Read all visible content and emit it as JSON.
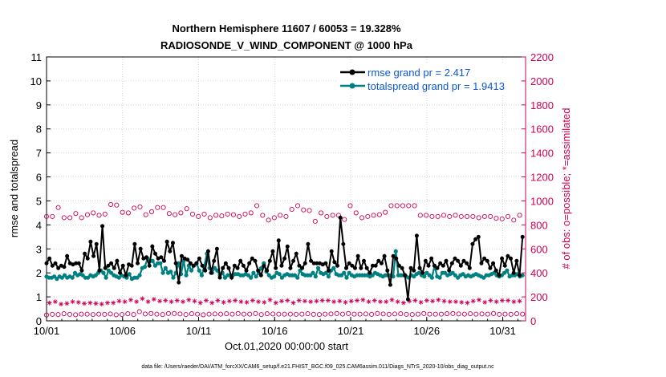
{
  "chart_data": {
    "type": "line",
    "title": "Northern Hemisphere 11607 / 60053 = 19.328%",
    "subtitle": "RADIOSONDE_V_WIND_COMPONENT @ 1000 hPa",
    "xlabel": "Oct.01,2020 00:00:00 start",
    "ylabel": "rmse and totalspread",
    "y2label": "# of obs: o=possible; *=assimilated",
    "footnote": "data file: /Users/raeder/DAI/ATM_forcXX/CAM6_setup/f.e21.FHIST_BGC.f09_025.CAM6assim.011/Diags_NTrS_2020-10/obs_diag_output.nc",
    "xlim": [
      1,
      32.5
    ],
    "ylim": [
      0,
      11
    ],
    "y2lim": [
      0,
      2200
    ],
    "xticks": [
      1,
      6,
      11,
      16,
      21,
      26,
      31
    ],
    "xtick_labels": [
      "10/01",
      "10/06",
      "10/11",
      "10/16",
      "10/21",
      "10/26",
      "10/31"
    ],
    "yticks": [
      0,
      1,
      2,
      3,
      4,
      5,
      6,
      7,
      8,
      9,
      10,
      11
    ],
    "y2ticks": [
      0,
      200,
      400,
      600,
      800,
      1000,
      1200,
      1400,
      1600,
      1800,
      2000,
      2200
    ],
    "grid": true,
    "legend": {
      "position": "top-right",
      "entries": [
        "rmse grand pr = 2.417",
        "totalspread grand pr = 1.9413"
      ]
    },
    "colors": {
      "rmse": "#000000",
      "totalspread": "#008080",
      "obs": "#cc0055",
      "grid": "#cccccc",
      "legend_text": "#0b57d0"
    },
    "series": [
      {
        "name": "rmse",
        "axis": "left",
        "values": [
          2.4,
          2.6,
          2.3,
          2.4,
          2.2,
          2.3,
          2.25,
          2.7,
          2.4,
          2.35,
          2.4,
          2.4,
          2.1,
          2.8,
          2.6,
          3.3,
          2.7,
          3.2,
          2.1,
          3.95,
          2.2,
          2.3,
          2.4,
          2.2,
          2.5,
          2.0,
          2.3,
          1.9,
          2.35,
          2.3,
          3.2,
          2.4,
          3.0,
          2.6,
          2.65,
          2.3,
          3.1,
          2.8,
          2.6,
          2.65,
          2.5,
          3.3,
          2.9,
          3.25,
          2.4,
          1.6,
          2.7,
          2.6,
          2.55,
          2.4,
          2.3,
          2.4,
          2.6,
          2.3,
          2.1,
          2.9,
          2.0,
          2.5,
          3.0,
          1.8,
          2.2,
          2.4,
          2.2,
          1.8,
          2.3,
          2.2,
          2.5,
          2.3,
          2.1,
          2.4,
          2.6,
          2.5,
          2.1,
          1.9,
          2.3,
          2.1,
          2.5,
          2.9,
          2.2,
          3.35,
          2.3,
          2.6,
          3.1,
          2.2,
          2.5,
          2.8,
          2.3,
          2.2,
          2.4,
          3.2,
          2.5,
          2.4,
          2.4,
          2.4,
          2.35,
          2.4,
          2.1,
          2.9,
          2.45,
          2.3,
          4.3,
          3.2,
          2.2,
          2.4,
          2.3,
          2.2,
          2.7,
          2.2,
          2.5,
          2.2,
          2.0,
          2.3,
          2.3,
          2.5,
          2.4,
          2.7,
          2.1,
          1.5,
          2.7,
          2.6,
          2.3,
          2.2,
          1.9,
          0.9,
          2.2,
          2.1,
          3.55,
          2.2,
          2.0,
          2.5,
          2.3,
          2.6,
          2.3,
          2.2,
          2.4,
          2.3,
          2.5,
          2.1,
          2.4,
          2.6,
          2.5,
          2.3,
          2.5,
          2.4,
          2.2,
          3.2,
          3.4,
          3.5,
          2.4,
          2.6,
          2.5,
          2.2,
          2.4,
          2.1,
          1.9,
          2.6,
          2.3,
          2.7,
          2.6,
          2.0,
          2.5,
          1.9,
          3.5
        ],
        "obs_possible": [
          870,
          840,
          870,
          845,
          945,
          850,
          860,
          850,
          860,
          850,
          895,
          855,
          860,
          895,
          885,
          950,
          900,
          890,
          880,
          905,
          890,
          810,
          970,
          925,
          965,
          925,
          905,
          960,
          900,
          995,
          940,
          905,
          950,
          890,
          885,
          870,
          910,
          945,
          945,
          870,
          945,
          830,
          895,
          890,
          885,
          890,
          900,
          890,
          935,
          880,
          890,
          865,
          870,
          875,
          890,
          870,
          860,
          895,
          880,
          920,
          875,
          860,
          890,
          870,
          885,
          880,
          870,
          835,
          890,
          860,
          900,
          855,
          960,
          870,
          880,
          875,
          840,
          865,
          860,
          945,
          880,
          860,
          870,
          960,
          930,
          905,
          960,
          850,
          925,
          880,
          920,
          880,
          830,
          935,
          900,
          810,
          870,
          870,
          880,
          880,
          880,
          870,
          845,
          910,
          960,
          900,
          900,
          875,
          860,
          900,
          870,
          890,
          880,
          900,
          885,
          880,
          905,
          890,
          960,
          965,
          960,
          960,
          960,
          950,
          960,
          960,
          960,
          925,
          880,
          870,
          880,
          840,
          870,
          880,
          870,
          880,
          880,
          850,
          870,
          880,
          880,
          840,
          870,
          870,
          870,
          860,
          870,
          870,
          860,
          890,
          870,
          860,
          870,
          880,
          855,
          880,
          850,
          890,
          870,
          890,
          840,
          870,
          880,
          860
        ],
        "obs_assimilated": [
          140,
          150,
          155,
          160,
          150,
          140,
          170,
          145,
          155,
          160,
          145,
          155,
          160,
          145,
          160,
          150,
          150,
          145,
          160,
          140,
          155,
          150,
          165,
          150,
          145,
          165,
          150,
          160,
          170,
          175,
          150,
          160,
          220,
          185,
          165,
          160,
          175,
          180,
          160,
          165,
          150,
          170,
          175,
          160,
          175,
          170,
          165,
          160,
          150,
          175,
          170,
          165,
          160,
          150,
          145,
          170,
          160,
          150,
          165,
          170,
          160,
          155,
          170,
          165,
          160,
          170,
          175,
          160,
          160,
          155,
          160,
          170,
          175,
          160,
          150,
          155,
          170,
          175,
          165,
          150,
          160,
          165,
          160,
          170,
          160,
          150,
          155,
          170,
          160,
          165,
          170,
          160,
          155,
          165,
          150,
          170,
          160,
          170,
          165,
          160,
          175,
          165,
          160,
          155,
          175,
          165,
          160,
          170,
          160,
          175,
          165,
          160,
          155,
          170,
          175,
          160,
          165,
          160,
          155,
          175,
          165,
          160,
          170,
          150,
          155,
          165,
          150,
          170,
          160,
          155,
          175,
          170,
          160,
          165,
          160,
          175,
          160,
          165,
          170,
          160,
          175,
          160,
          165,
          155,
          160,
          150,
          170,
          165,
          160,
          175,
          165,
          155,
          160,
          170,
          175,
          160,
          155,
          170,
          160,
          170,
          155,
          160,
          170,
          165,
          160
        ]
      },
      {
        "name": "totalspread",
        "axis": "left",
        "values": [
          1.85,
          1.8,
          1.8,
          1.85,
          1.75,
          1.85,
          1.8,
          1.9,
          1.8,
          1.85,
          1.8,
          2.0,
          1.9,
          1.95,
          1.9,
          1.8,
          1.8,
          1.9,
          1.85,
          1.9,
          2.0,
          2.1,
          2.0,
          1.8,
          2.1,
          2.0,
          1.9,
          1.85,
          1.8,
          1.9,
          1.85,
          1.8,
          1.95,
          1.75,
          1.8,
          1.8,
          1.9,
          2.2,
          2.25,
          2.6,
          2.5,
          2.5,
          2.3,
          2.4,
          2.4,
          2.0,
          2.2,
          2.0,
          2.05,
          1.8,
          2.0,
          2.4,
          1.95,
          2.5,
          1.9,
          2.3,
          2.1,
          2.3,
          2.4,
          2.1,
          1.9,
          2.3,
          2.8,
          2.2,
          2.0,
          2.2,
          2.1,
          1.9,
          2.0,
          1.8,
          1.9,
          1.9,
          1.9,
          1.95,
          1.95,
          1.9,
          1.9,
          1.95,
          1.9,
          1.8,
          2.0,
          1.85,
          2.0,
          2.2,
          2.4,
          2.05,
          1.9,
          1.8,
          1.85,
          2.0,
          1.95,
          1.8,
          1.9,
          1.95,
          1.9,
          1.9,
          1.9,
          1.8,
          2.1,
          1.95,
          1.9,
          1.9,
          1.9,
          2.0,
          1.85,
          2.2,
          2.0,
          1.95,
          2.0,
          1.85,
          2.1,
          2.2,
          1.95,
          1.9,
          1.9,
          2.0,
          1.8,
          2.0,
          1.9,
          1.85,
          1.9,
          1.9,
          1.9,
          1.9,
          1.9,
          1.85,
          1.9,
          2.0,
          1.95,
          1.9,
          1.85,
          1.9,
          1.9,
          1.9,
          1.85,
          2.9,
          1.9,
          1.9,
          1.9,
          1.85,
          1.8,
          1.9,
          1.85,
          1.95,
          2.0,
          1.9,
          1.85,
          2.0,
          1.9,
          1.8,
          2.3,
          1.85,
          1.8,
          2.0,
          2.0,
          1.9,
          1.95,
          2.0,
          1.9,
          1.8,
          1.9,
          1.95,
          1.85,
          1.9,
          1.85,
          1.9,
          1.95,
          1.9,
          1.85,
          1.8,
          1.9,
          1.9,
          1.95,
          2.0,
          1.9,
          1.85,
          1.9,
          2.0,
          2.1,
          1.85,
          1.9,
          1.9,
          1.95,
          1.85,
          1.9
        ]
      }
    ]
  }
}
